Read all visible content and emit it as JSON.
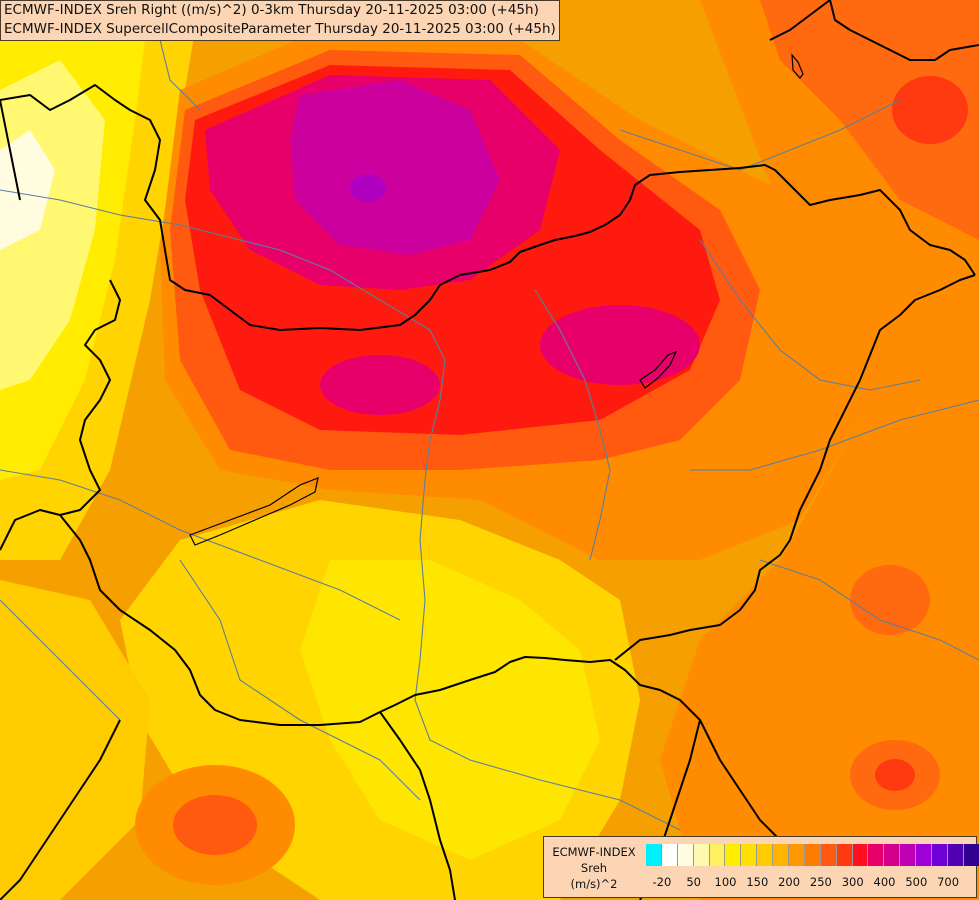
{
  "header": {
    "line1": "ECMWF-INDEX Sreh Right ((m/s)^2) 0-3km Thursday 20-11-2025 03:00 (+45h)",
    "line2": "ECMWF-INDEX SupercellCompositeParameter Thursday 20-11-2025 03:00 (+45h)"
  },
  "legend": {
    "line1": "ECMWF-INDEX",
    "line2": "Sreh",
    "line3": "(m/s)^2",
    "colors": [
      "#00f0ff",
      "#ffffff",
      "#fffce0",
      "#fff8b0",
      "#fff060",
      "#ffee00",
      "#ffe000",
      "#ffcc00",
      "#ffb400",
      "#ff9800",
      "#ff7c00",
      "#ff5a10",
      "#ff3a10",
      "#ff1020",
      "#e8006a",
      "#d4008c",
      "#c000b4",
      "#a000d8",
      "#7000d8",
      "#5000b0",
      "#300090",
      "#180078"
    ],
    "ticks": [
      {
        "label": "-20",
        "index": 1
      },
      {
        "label": "50",
        "index": 3
      },
      {
        "label": "100",
        "index": 5
      },
      {
        "label": "150",
        "index": 7
      },
      {
        "label": "200",
        "index": 9
      },
      {
        "label": "250",
        "index": 11
      },
      {
        "label": "300",
        "index": 13
      },
      {
        "label": "400",
        "index": 15
      },
      {
        "label": "500",
        "index": 17
      },
      {
        "label": "700",
        "index": 19
      }
    ]
  },
  "map": {
    "field": "storm-relative helicity 0-3km",
    "colors": {
      "base": "#f5a000",
      "yellow": "#ffe600",
      "light_yellow": "#fff870",
      "orange": "#ff8c00",
      "red_orange": "#ff5a10",
      "red": "#ff1a10",
      "crimson": "#e8006a",
      "magenta": "#cc009c",
      "border": "#000000",
      "river": "#5a7fa0"
    }
  }
}
